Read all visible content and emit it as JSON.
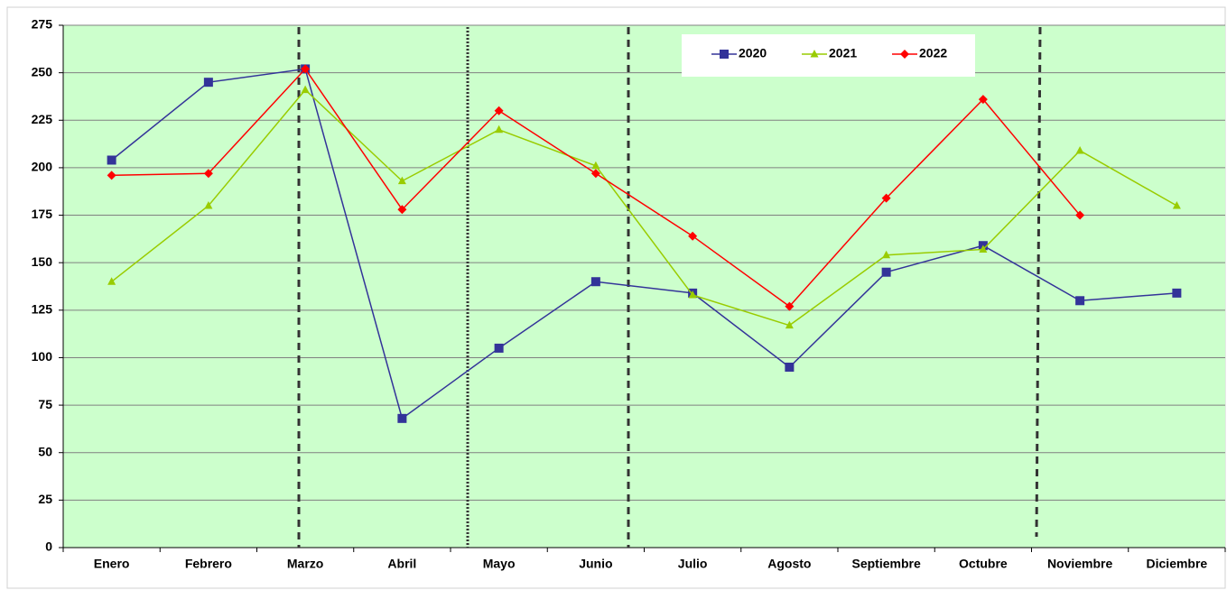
{
  "chart_data": {
    "type": "line",
    "categories": [
      "Enero",
      "Febrero",
      "Marzo",
      "Abril",
      "Mayo",
      "Junio",
      "Julio",
      "Agosto",
      "Septiembre",
      "Octubre",
      "Noviembre",
      "Diciembre"
    ],
    "series": [
      {
        "name": "2020",
        "color": "#333399",
        "marker": "square",
        "values": [
          204,
          245,
          252,
          68,
          105,
          140,
          134,
          95,
          145,
          159,
          130,
          134
        ]
      },
      {
        "name": "2021",
        "color": "#99cc00",
        "marker": "triangle",
        "values": [
          140,
          180,
          241,
          193,
          220,
          201,
          133,
          117,
          154,
          157,
          209,
          180
        ]
      },
      {
        "name": "2022",
        "color": "#ff0000",
        "marker": "diamond",
        "values": [
          196,
          197,
          252,
          178,
          230,
          197,
          164,
          127,
          184,
          236,
          175,
          null
        ]
      }
    ],
    "ylim": [
      0,
      275
    ],
    "yticks": [
      0,
      25,
      50,
      75,
      100,
      125,
      150,
      175,
      200,
      225,
      250,
      275
    ],
    "grid": true,
    "background": "#ccffcc"
  }
}
